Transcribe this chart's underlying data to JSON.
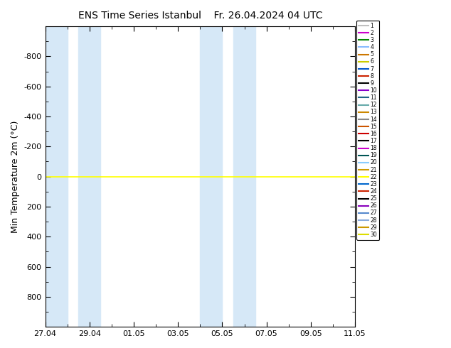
{
  "title1": "ENS Time Series Istanbul",
  "title2": "Fr. 26.04.2024 04 UTC",
  "ylabel": "Min Temperature 2m (°C)",
  "ylim": [
    1000,
    -1000
  ],
  "yticks": [
    800,
    600,
    400,
    200,
    0,
    -200,
    -400,
    -600,
    -800
  ],
  "ytick_labels": [
    "800",
    "600",
    "400",
    "200",
    "0",
    "-200",
    "-400",
    "-600",
    "-800"
  ],
  "xtick_labels": [
    "27.04",
    "29.04",
    "01.05",
    "03.05",
    "05.05",
    "07.05",
    "09.05",
    "11.05"
  ],
  "xtick_positions": [
    0,
    2,
    4,
    6,
    8,
    10,
    12,
    14
  ],
  "shaded_bands": [
    {
      "xstart": 0.0,
      "xend": 1.0
    },
    {
      "xstart": 1.5,
      "xend": 2.5
    },
    {
      "xstart": 7.0,
      "xend": 8.0
    },
    {
      "xstart": 8.5,
      "xend": 9.5
    }
  ],
  "line_y": 0,
  "line_color": "#ffff00",
  "background_color": "#ffffff",
  "plot_bg_color": "#ffffff",
  "shade_color": "#d6e8f7",
  "member_colors": [
    "#c0c0c0",
    "#cc00cc",
    "#008800",
    "#88bbff",
    "#cc7700",
    "#cccc00",
    "#0055cc",
    "#cc2200",
    "#000000",
    "#8800cc",
    "#226688",
    "#66aaaa",
    "#cc8800",
    "#888888",
    "#cc5500",
    "#cc0000",
    "#000000",
    "#cc00cc",
    "#005555",
    "#88ccff",
    "#cc9900",
    "#ffff00",
    "#0066cc",
    "#cc2200",
    "#000000",
    "#8800bb",
    "#5588cc",
    "#88aadd",
    "#cc9900",
    "#dddd00"
  ],
  "n_members": 30,
  "figsize": [
    6.34,
    4.9
  ],
  "dpi": 100
}
